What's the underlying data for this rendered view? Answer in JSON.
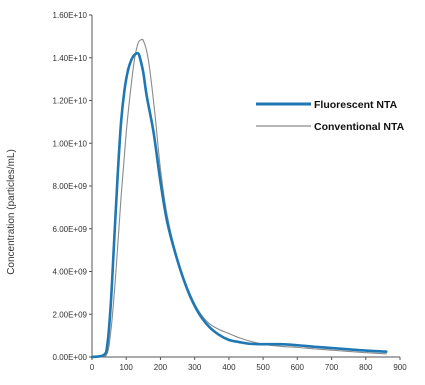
{
  "chart_data": {
    "type": "line",
    "title": "",
    "xlabel": "",
    "ylabel": "Concentration  (particles/mL)",
    "xlim": [
      0,
      900
    ],
    "ylim": [
      0,
      16000000000
    ],
    "x_ticks": [
      "0",
      "100",
      "200",
      "300",
      "400",
      "500",
      "600",
      "700",
      "800",
      "900"
    ],
    "y_ticks": [
      "0.00E+00",
      "2.00E+09",
      "4.00E+09",
      "6.00E+09",
      "8.00E+09",
      "1.00E+10",
      "1.20E+10",
      "1.40E+10",
      "1.60E+10"
    ],
    "grid": false,
    "legend_position": "right",
    "colors": {
      "fluorescent": "#1f77b4",
      "conventional": "#8a8a8a",
      "axis": "#555555"
    },
    "series": [
      {
        "name": "Fluorescent NTA",
        "x": [
          0,
          35,
          45,
          55,
          65,
          75,
          85,
          95,
          105,
          115,
          125,
          135,
          140,
          150,
          160,
          180,
          200,
          220,
          250,
          280,
          310,
          340,
          370,
          400,
          430,
          460,
          500,
          550,
          600,
          650,
          700,
          750,
          800,
          860
        ],
        "y": [
          0,
          100000000.0,
          600000000.0,
          2500000000.0,
          5500000000.0,
          8500000000.0,
          11000000000.0,
          12500000000.0,
          13400000000.0,
          13900000000.0,
          14150000000.0,
          14200000000.0,
          14000000000.0,
          13300000000.0,
          12200000000.0,
          10500000000.0,
          8200000000.0,
          6300000000.0,
          4500000000.0,
          3100000000.0,
          2100000000.0,
          1450000000.0,
          1050000000.0,
          800000000.0,
          700000000.0,
          620000000.0,
          600000000.0,
          600000000.0,
          550000000.0,
          480000000.0,
          420000000.0,
          360000000.0,
          300000000.0,
          250000000.0
        ]
      },
      {
        "name": "Conventional NTA",
        "x": [
          0,
          40,
          55,
          70,
          85,
          100,
          115,
          125,
          135,
          145,
          150,
          160,
          170,
          185,
          200,
          220,
          250,
          280,
          310,
          340,
          370,
          400,
          430,
          460,
          500,
          550,
          600,
          650,
          700,
          750,
          800,
          860
        ],
        "y": [
          0,
          50000000.0,
          1200000000.0,
          4000000000.0,
          7500000000.0,
          10500000000.0,
          12800000000.0,
          14000000000.0,
          14700000000.0,
          14850000000.0,
          14800000000.0,
          14300000000.0,
          13300000000.0,
          11200000000.0,
          8800000000.0,
          6600000000.0,
          4600000000.0,
          3200000000.0,
          2200000000.0,
          1600000000.0,
          1300000000.0,
          1100000000.0,
          900000000.0,
          750000000.0,
          600000000.0,
          500000000.0,
          450000000.0,
          380000000.0,
          320000000.0,
          260000000.0,
          200000000.0,
          150000000.0
        ]
      }
    ]
  }
}
